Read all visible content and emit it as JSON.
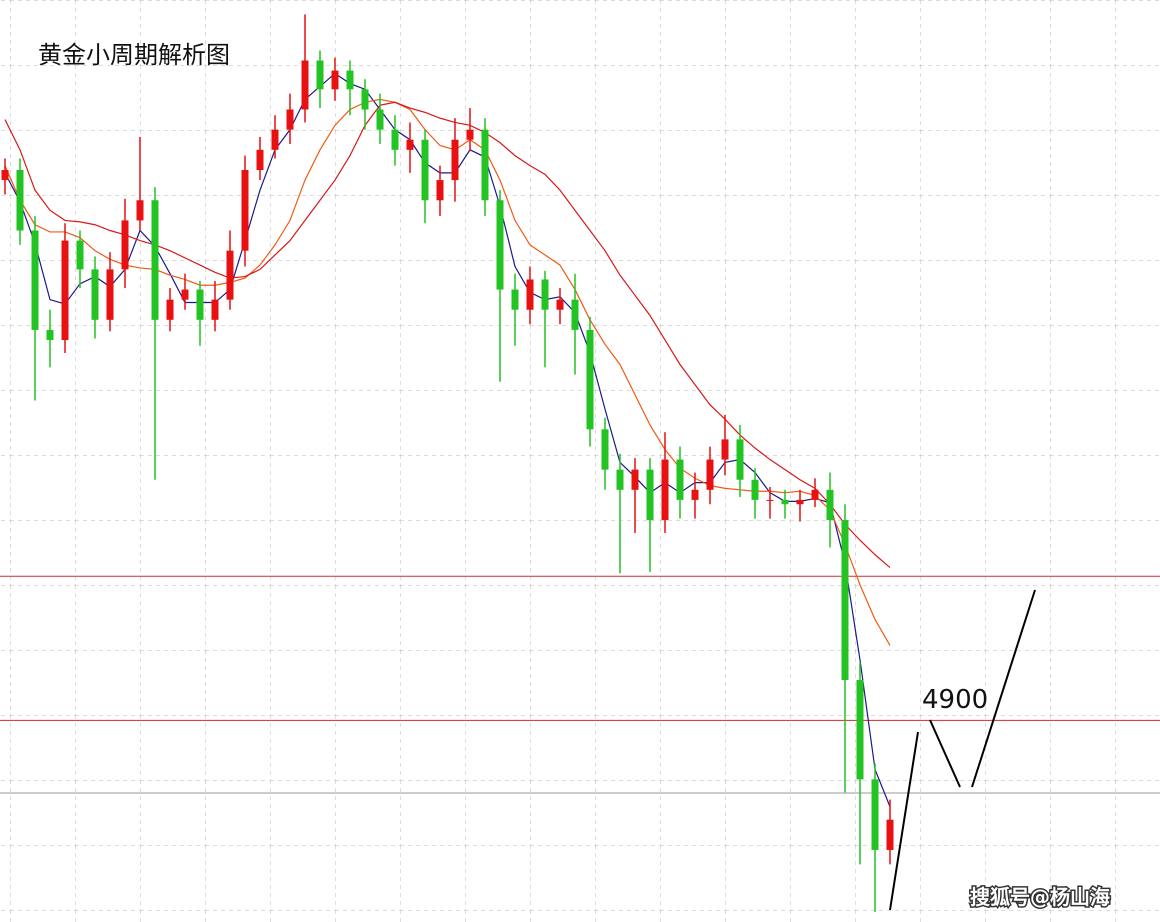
{
  "chart_data": {
    "type": "candlestick",
    "title": "黄金小周期解析图",
    "watermark": "搜狐号@杨山海",
    "ylim": [
      4760,
      5400
    ],
    "up_color": "#e81010",
    "down_color": "#22c322",
    "levels": [
      5000,
      4900
    ],
    "level_color": "#d42a2a",
    "open": [
      5275,
      5282,
      5240,
      5171,
      5164,
      5233,
      5213,
      5178,
      5213,
      5247,
      5261,
      5178,
      5192,
      5199,
      5178,
      5192,
      5226,
      5282,
      5296,
      5310,
      5324,
      5358,
      5338,
      5351,
      5338,
      5324,
      5310,
      5296,
      5303,
      5261,
      5275,
      5303,
      5310,
      5261,
      5199,
      5185,
      5206,
      5185,
      5192,
      5171,
      5102,
      5074,
      5060,
      5074,
      5039,
      5081,
      5053,
      5060,
      5081,
      5095,
      5067,
      5053,
      5053,
      5050,
      5053,
      5060,
      5039,
      4928,
      4859,
      4810
    ],
    "high": [
      5290,
      5290,
      5250,
      5185,
      5245,
      5240,
      5222,
      5225,
      5262,
      5305,
      5270,
      5200,
      5210,
      5205,
      5205,
      5240,
      5292,
      5305,
      5320,
      5335,
      5390,
      5365,
      5360,
      5358,
      5345,
      5335,
      5320,
      5315,
      5310,
      5285,
      5318,
      5325,
      5318,
      5268,
      5210,
      5215,
      5212,
      5200,
      5210,
      5180,
      5110,
      5085,
      5082,
      5082,
      5100,
      5090,
      5072,
      5090,
      5112,
      5105,
      5075,
      5062,
      5060,
      5060,
      5068,
      5072,
      5050,
      4940,
      4870,
      4845
    ],
    "low": [
      5265,
      5230,
      5122,
      5145,
      5155,
      5200,
      5165,
      5170,
      5200,
      5240,
      5067,
      5170,
      5185,
      5160,
      5170,
      5185,
      5215,
      5275,
      5290,
      5300,
      5315,
      5325,
      5330,
      5320,
      5310,
      5300,
      5285,
      5280,
      5245,
      5250,
      5260,
      5295,
      5250,
      5135,
      5160,
      5175,
      5145,
      5175,
      5140,
      5090,
      5060,
      5002,
      5030,
      5003,
      5030,
      5040,
      5040,
      5050,
      5070,
      5055,
      5040,
      5040,
      5040,
      5038,
      5048,
      5020,
      4850,
      4800,
      4767,
      4800
    ],
    "close": [
      5282,
      5240,
      5171,
      5164,
      5233,
      5213,
      5178,
      5213,
      5247,
      5261,
      5178,
      5192,
      5199,
      5178,
      5192,
      5226,
      5282,
      5296,
      5310,
      5324,
      5358,
      5338,
      5351,
      5338,
      5324,
      5310,
      5296,
      5303,
      5261,
      5275,
      5303,
      5310,
      5261,
      5199,
      5185,
      5206,
      5185,
      5192,
      5171,
      5102,
      5074,
      5060,
      5074,
      5039,
      5081,
      5053,
      5060,
      5081,
      5095,
      5067,
      5053,
      5053,
      5050,
      5053,
      5060,
      5039,
      4928,
      4859,
      4810,
      4831
    ],
    "lines": [
      {
        "color": "#1a1a8c",
        "values": [
          5280,
          5260,
          5231,
          5192,
          5189,
          5203,
          5208,
          5201,
          5213,
          5240,
          5229,
          5210,
          5190,
          5190,
          5190,
          5199,
          5233,
          5268,
          5296,
          5310,
          5331,
          5340,
          5349,
          5342,
          5338,
          5324,
          5310,
          5303,
          5287,
          5280,
          5280,
          5296,
          5291,
          5257,
          5215,
          5197,
          5192,
          5194,
          5183,
          5155,
          5116,
          5079,
          5069,
          5058,
          5065,
          5058,
          5065,
          5065,
          5079,
          5081,
          5072,
          5058,
          5052,
          5052,
          5054,
          5051,
          5009,
          4942,
          4866,
          4840
        ]
      },
      {
        "color": "#f05a14",
        "values": [
          5285,
          5261,
          5244,
          5239,
          5239,
          5235,
          5226,
          5220,
          5216,
          5214,
          5213,
          5209,
          5206,
          5202,
          5202,
          5204,
          5207,
          5216,
          5230,
          5247,
          5275,
          5296,
          5313,
          5324,
          5329,
          5331,
          5329,
          5324,
          5310,
          5299,
          5296,
          5303,
          5296,
          5275,
          5247,
          5230,
          5223,
          5216,
          5199,
          5178,
          5161,
          5147,
          5126,
          5105,
          5088,
          5075,
          5068,
          5063,
          5061,
          5060,
          5059,
          5059,
          5058,
          5059,
          5056,
          5046,
          5022,
          4994,
          4970,
          4952
        ]
      },
      {
        "color": "#d81818",
        "values": [
          5317,
          5296,
          5268,
          5254,
          5247,
          5246,
          5244,
          5240,
          5237,
          5233,
          5230,
          5226,
          5221,
          5216,
          5211,
          5207,
          5208,
          5213,
          5223,
          5233,
          5247,
          5261,
          5275,
          5292,
          5313,
          5327,
          5329,
          5325,
          5322,
          5318,
          5315,
          5313,
          5308,
          5301,
          5292,
          5285,
          5279,
          5268,
          5254,
          5240,
          5226,
          5209,
          5195,
          5181,
          5164,
          5147,
          5133,
          5119,
          5109,
          5098,
          5089,
          5081,
          5074,
          5067,
          5061,
          5050,
          5036,
          5025,
          5015,
          5006
        ]
      }
    ]
  }
}
